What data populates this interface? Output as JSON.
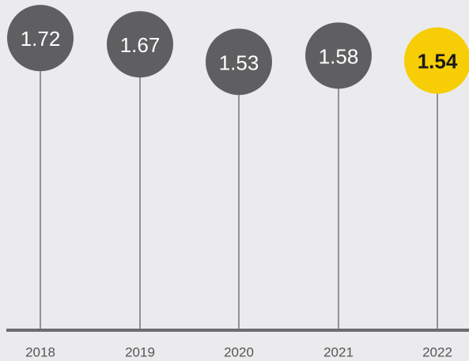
{
  "chart_data": {
    "type": "lollipop",
    "categories": [
      "2018",
      "2019",
      "2020",
      "2021",
      "2022"
    ],
    "values": [
      1.72,
      1.67,
      1.53,
      1.58,
      1.54
    ],
    "value_labels": [
      "1.72",
      "1.67",
      "1.53",
      "1.58",
      "1.54"
    ],
    "highlight_index": 4,
    "ylim": [
      1.5,
      1.74
    ],
    "title": "",
    "xlabel": "",
    "ylabel": "",
    "grid": false,
    "legend": "none",
    "colors": {
      "background": "#ebebed",
      "bubble": "#5f5f61",
      "highlight_bubble": "#f7cd06",
      "stem": "#6b6b6b",
      "baseline": "#6c6c6e",
      "label_text": "#ffffff",
      "highlight_text": "#1a1a1a",
      "tick_text": "#555555"
    }
  }
}
